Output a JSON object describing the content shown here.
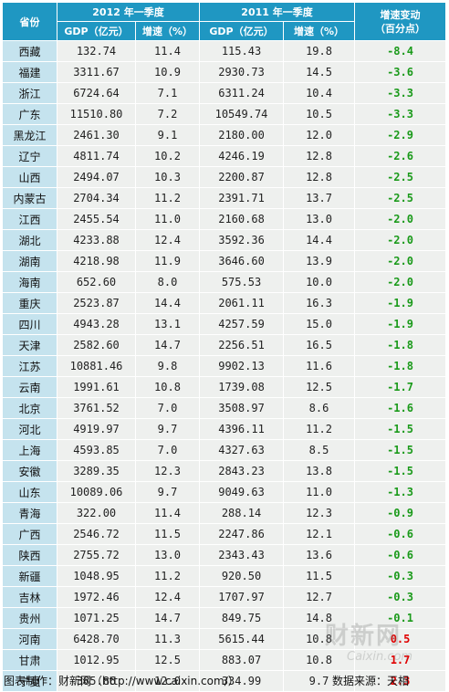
{
  "header": {
    "province": "省份",
    "period_2012": "2012 年一季度",
    "period_2011": "2011 年一季度",
    "gdp_label": "GDP（亿元）",
    "growth_label": "增速（%）",
    "change_line1": "增速变动",
    "change_line2": "（百分点）"
  },
  "colors": {
    "header_bg": "#1f97c2",
    "province_bg": "#c5e3ee",
    "cell_bg": "#eef0ee",
    "negative": "#1a9a1a",
    "positive": "#e00000"
  },
  "rows": [
    {
      "p": "西藏",
      "g12": "132.74",
      "r12": "11.4",
      "g11": "115.43",
      "r11": "19.8",
      "c": "-8.4",
      "neg": true
    },
    {
      "p": "福建",
      "g12": "3311.67",
      "r12": "10.9",
      "g11": "2930.73",
      "r11": "14.5",
      "c": "-3.6",
      "neg": true
    },
    {
      "p": "浙江",
      "g12": "6724.64",
      "r12": "7.1",
      "g11": "6311.24",
      "r11": "10.4",
      "c": "-3.3",
      "neg": true
    },
    {
      "p": "广东",
      "g12": "11510.80",
      "r12": "7.2",
      "g11": "10549.74",
      "r11": "10.5",
      "c": "-3.3",
      "neg": true
    },
    {
      "p": "黑龙江",
      "g12": "2461.30",
      "r12": "9.1",
      "g11": "2180.00",
      "r11": "12.0",
      "c": "-2.9",
      "neg": true
    },
    {
      "p": "辽宁",
      "g12": "4811.74",
      "r12": "10.2",
      "g11": "4246.19",
      "r11": "12.8",
      "c": "-2.6",
      "neg": true
    },
    {
      "p": "山西",
      "g12": "2494.07",
      "r12": "10.3",
      "g11": "2200.87",
      "r11": "12.8",
      "c": "-2.5",
      "neg": true
    },
    {
      "p": "内蒙古",
      "g12": "2704.34",
      "r12": "11.2",
      "g11": "2391.71",
      "r11": "13.7",
      "c": "-2.5",
      "neg": true
    },
    {
      "p": "江西",
      "g12": "2455.54",
      "r12": "11.0",
      "g11": "2160.68",
      "r11": "13.0",
      "c": "-2.0",
      "neg": true
    },
    {
      "p": "湖北",
      "g12": "4233.88",
      "r12": "12.4",
      "g11": "3592.36",
      "r11": "14.4",
      "c": "-2.0",
      "neg": true
    },
    {
      "p": "湖南",
      "g12": "4218.98",
      "r12": "11.9",
      "g11": "3646.60",
      "r11": "13.9",
      "c": "-2.0",
      "neg": true
    },
    {
      "p": "海南",
      "g12": "652.60",
      "r12": "8.0",
      "g11": "575.53",
      "r11": "10.0",
      "c": "-2.0",
      "neg": true
    },
    {
      "p": "重庆",
      "g12": "2523.87",
      "r12": "14.4",
      "g11": "2061.11",
      "r11": "16.3",
      "c": "-1.9",
      "neg": true
    },
    {
      "p": "四川",
      "g12": "4943.28",
      "r12": "13.1",
      "g11": "4257.59",
      "r11": "15.0",
      "c": "-1.9",
      "neg": true
    },
    {
      "p": "天津",
      "g12": "2582.60",
      "r12": "14.7",
      "g11": "2256.51",
      "r11": "16.5",
      "c": "-1.8",
      "neg": true
    },
    {
      "p": "江苏",
      "g12": "10881.46",
      "r12": "9.8",
      "g11": "9902.13",
      "r11": "11.6",
      "c": "-1.8",
      "neg": true
    },
    {
      "p": "云南",
      "g12": "1991.61",
      "r12": "10.8",
      "g11": "1739.08",
      "r11": "12.5",
      "c": "-1.7",
      "neg": true
    },
    {
      "p": "北京",
      "g12": "3761.52",
      "r12": "7.0",
      "g11": "3508.97",
      "r11": "8.6",
      "c": "-1.6",
      "neg": true
    },
    {
      "p": "河北",
      "g12": "4919.97",
      "r12": "9.7",
      "g11": "4396.11",
      "r11": "11.2",
      "c": "-1.5",
      "neg": true
    },
    {
      "p": "上海",
      "g12": "4593.85",
      "r12": "7.0",
      "g11": "4327.63",
      "r11": "8.5",
      "c": "-1.5",
      "neg": true
    },
    {
      "p": "安徽",
      "g12": "3289.35",
      "r12": "12.3",
      "g11": "2843.23",
      "r11": "13.8",
      "c": "-1.5",
      "neg": true
    },
    {
      "p": "山东",
      "g12": "10089.06",
      "r12": "9.7",
      "g11": "9049.63",
      "r11": "11.0",
      "c": "-1.3",
      "neg": true
    },
    {
      "p": "青海",
      "g12": "322.00",
      "r12": "11.4",
      "g11": "288.14",
      "r11": "12.3",
      "c": "-0.9",
      "neg": true
    },
    {
      "p": "广西",
      "g12": "2546.72",
      "r12": "11.5",
      "g11": "2247.86",
      "r11": "12.1",
      "c": "-0.6",
      "neg": true
    },
    {
      "p": "陕西",
      "g12": "2755.72",
      "r12": "13.0",
      "g11": "2343.43",
      "r11": "13.6",
      "c": "-0.6",
      "neg": true
    },
    {
      "p": "新疆",
      "g12": "1048.95",
      "r12": "11.2",
      "g11": "920.50",
      "r11": "11.5",
      "c": "-0.3",
      "neg": true
    },
    {
      "p": "吉林",
      "g12": "1972.46",
      "r12": "12.4",
      "g11": "1707.97",
      "r11": "12.7",
      "c": "-0.3",
      "neg": true
    },
    {
      "p": "贵州",
      "g12": "1071.25",
      "r12": "14.7",
      "g11": "849.75",
      "r11": "14.8",
      "c": "-0.1",
      "neg": true
    },
    {
      "p": "河南",
      "g12": "6428.70",
      "r12": "11.3",
      "g11": "5615.44",
      "r11": "10.8",
      "c": "0.5",
      "neg": false
    },
    {
      "p": "甘肃",
      "g12": "1012.95",
      "r12": "12.5",
      "g11": "883.07",
      "r11": "10.8",
      "c": "1.7",
      "neg": false
    },
    {
      "p": "宁夏",
      "g12": "385.86",
      "r12": "12.0",
      "g11": "334.99",
      "r11": "9.7",
      "c": "2.3",
      "neg": false
    }
  ],
  "footer": {
    "credit": "图表制作：财新网（http://www.caixin.com/）",
    "source": "数据来源：天相"
  },
  "watermark": {
    "text": "财新网",
    "sub": "Caixin.com"
  }
}
